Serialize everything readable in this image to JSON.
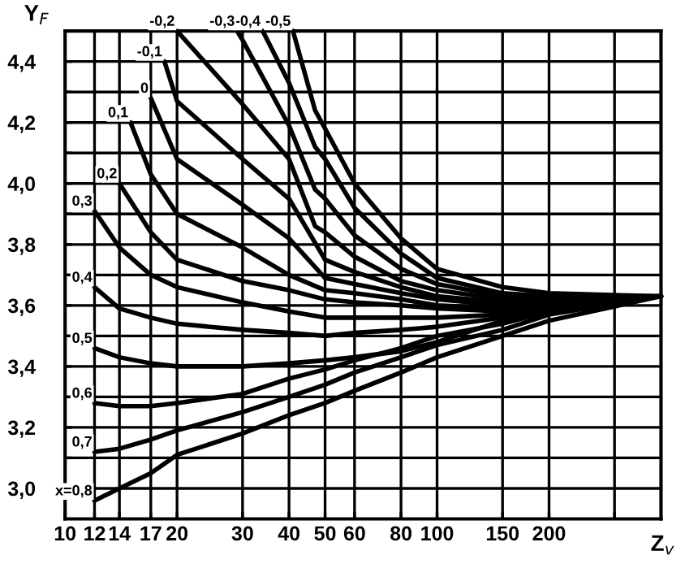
{
  "chart_data": {
    "type": "line",
    "xlabel": "Z$_{v}$",
    "ylabel": "Y$_{F}$",
    "xlim": [
      10,
      400
    ],
    "ylim": [
      2.9,
      4.5
    ],
    "log": "x",
    "xticks": [
      10,
      12,
      14,
      17,
      20,
      30,
      40,
      50,
      60,
      80,
      100,
      150,
      200,
      {
        "value": 300,
        "label": null
      }
    ],
    "yticks": [
      {
        "value": 3.0,
        "label": "3,0"
      },
      {
        "value": 3.1,
        "label": null
      },
      {
        "value": 3.2,
        "label": "3,2"
      },
      {
        "value": 3.3,
        "label": null
      },
      {
        "value": 3.4,
        "label": "3,4"
      },
      {
        "value": 3.5,
        "label": null
      },
      {
        "value": 3.6,
        "label": "3,6"
      },
      {
        "value": 3.7,
        "label": null
      },
      {
        "value": 3.8,
        "label": "3,8"
      },
      {
        "value": 3.9,
        "label": null
      },
      {
        "value": 4.0,
        "label": "4,0"
      },
      {
        "value": 4.1,
        "label": null
      },
      {
        "value": 4.2,
        "label": "4,2"
      },
      {
        "value": 4.3,
        "label": null
      },
      {
        "value": 4.4,
        "label": "4,4"
      }
    ],
    "grid": true,
    "marker": "none",
    "line_style": "solid",
    "series": [
      {
        "color": "#000000",
        "x": [
          41,
          47,
          50,
          60,
          80,
          100,
          150,
          200,
          400
        ],
        "values": [
          4.5,
          4.24,
          4.18,
          4.0,
          3.82,
          3.72,
          3.66,
          3.64,
          3.63
        ]
      },
      {
        "color": "#000000",
        "x": [
          34,
          40,
          47,
          50,
          60,
          80,
          100,
          150,
          200,
          400
        ],
        "values": [
          4.5,
          4.33,
          4.12,
          4.08,
          3.92,
          3.77,
          3.69,
          3.64,
          3.63,
          3.63
        ]
      },
      {
        "color": "#000000",
        "x": [
          29,
          30,
          40,
          47,
          50,
          60,
          80,
          100,
          150,
          200,
          400
        ],
        "values": [
          4.5,
          4.47,
          4.19,
          3.98,
          3.95,
          3.83,
          3.72,
          3.67,
          3.63,
          3.62,
          3.63
        ]
      },
      {
        "color": "#000000",
        "x": [
          20,
          30,
          40,
          47,
          50,
          60,
          80,
          100,
          150,
          200,
          400
        ],
        "values": [
          4.5,
          4.26,
          4.08,
          3.86,
          3.84,
          3.76,
          3.68,
          3.65,
          3.62,
          3.62,
          3.63
        ]
      },
      {
        "color": "#000000",
        "x": [
          18.5,
          20,
          30,
          40,
          50,
          60,
          80,
          100,
          150,
          200,
          400
        ],
        "values": [
          4.4,
          4.27,
          4.08,
          3.95,
          3.75,
          3.71,
          3.66,
          3.63,
          3.61,
          3.61,
          3.63
        ]
      },
      {
        "color": "#000000",
        "x": [
          17,
          20,
          30,
          40,
          50,
          60,
          80,
          100,
          150,
          200,
          400
        ],
        "values": [
          4.28,
          4.08,
          3.93,
          3.82,
          3.69,
          3.67,
          3.64,
          3.62,
          3.6,
          3.61,
          3.63
        ]
      },
      {
        "color": "#000000",
        "x": [
          15,
          17,
          20,
          30,
          40,
          50,
          60,
          80,
          100,
          150,
          200,
          400
        ],
        "values": [
          4.2,
          4.03,
          3.9,
          3.79,
          3.7,
          3.65,
          3.64,
          3.62,
          3.6,
          3.59,
          3.6,
          3.63
        ]
      },
      {
        "color": "#000000",
        "x": [
          14,
          17,
          20,
          30,
          40,
          50,
          60,
          80,
          100,
          150,
          200,
          400
        ],
        "values": [
          4.0,
          3.84,
          3.75,
          3.68,
          3.65,
          3.62,
          3.61,
          3.6,
          3.59,
          3.58,
          3.6,
          3.63
        ]
      },
      {
        "color": "#000000",
        "x": [
          12,
          14,
          17,
          20,
          30,
          40,
          50,
          60,
          80,
          100,
          150,
          200,
          400
        ],
        "values": [
          3.91,
          3.79,
          3.7,
          3.66,
          3.61,
          3.58,
          3.56,
          3.56,
          3.56,
          3.56,
          3.57,
          3.6,
          3.63
        ]
      },
      {
        "color": "#000000",
        "x": [
          12,
          14,
          17,
          20,
          30,
          40,
          50,
          60,
          80,
          100,
          150,
          200,
          400
        ],
        "values": [
          3.66,
          3.59,
          3.56,
          3.54,
          3.52,
          3.51,
          3.5,
          3.51,
          3.52,
          3.53,
          3.56,
          3.59,
          3.63
        ]
      },
      {
        "color": "#000000",
        "x": [
          12,
          14,
          17,
          20,
          30,
          40,
          50,
          60,
          80,
          100,
          150,
          200,
          400
        ],
        "values": [
          3.46,
          3.43,
          3.41,
          3.4,
          3.4,
          3.41,
          3.42,
          3.43,
          3.45,
          3.48,
          3.55,
          3.58,
          3.63
        ]
      },
      {
        "color": "#000000",
        "x": [
          12,
          14,
          17,
          20,
          30,
          40,
          50,
          60,
          80,
          100,
          150,
          200,
          400
        ],
        "values": [
          3.28,
          3.27,
          3.27,
          3.28,
          3.31,
          3.36,
          3.39,
          3.42,
          3.46,
          3.5,
          3.54,
          3.58,
          3.63
        ]
      },
      {
        "color": "#000000",
        "x": [
          12,
          14,
          17,
          20,
          30,
          40,
          50,
          60,
          80,
          100,
          150,
          200,
          400
        ],
        "values": [
          3.12,
          3.13,
          3.16,
          3.19,
          3.25,
          3.3,
          3.34,
          3.38,
          3.43,
          3.47,
          3.52,
          3.57,
          3.63
        ]
      },
      {
        "color": "#000000",
        "x": [
          12,
          14,
          17,
          20,
          30,
          40,
          50,
          60,
          80,
          100,
          150,
          200,
          400
        ],
        "values": [
          2.96,
          3.0,
          3.05,
          3.11,
          3.18,
          3.24,
          3.28,
          3.32,
          3.38,
          3.43,
          3.5,
          3.55,
          3.63
        ]
      }
    ],
    "annotations": [
      {
        "text": "-0,5",
        "x": 41,
        "y": 4.5
      },
      {
        "text": "-0,4",
        "x": 34,
        "y": 4.5
      },
      {
        "text": "-0,3",
        "x": 29,
        "y": 4.5
      },
      {
        "text": "-0,2",
        "x": 20,
        "y": 4.5
      },
      {
        "text": "-0,1",
        "x": 18.5,
        "y": 4.4
      },
      {
        "text": "0",
        "x": 17,
        "y": 4.28
      },
      {
        "text": "0,1",
        "x": 15,
        "y": 4.2
      },
      {
        "text": "0,2",
        "x": 14,
        "y": 4.0
      },
      {
        "text": "0,3",
        "x": 12,
        "y": 3.91
      },
      {
        "text": "0,4",
        "x": 12,
        "y": 3.66
      },
      {
        "text": "0,5",
        "x": 12,
        "y": 3.46
      },
      {
        "text": "0,6",
        "x": 12,
        "y": 3.28
      },
      {
        "text": "0,7",
        "x": 12,
        "y": 3.12
      },
      {
        "text": "x=0,8",
        "x": 12,
        "y": 2.96
      }
    ]
  }
}
